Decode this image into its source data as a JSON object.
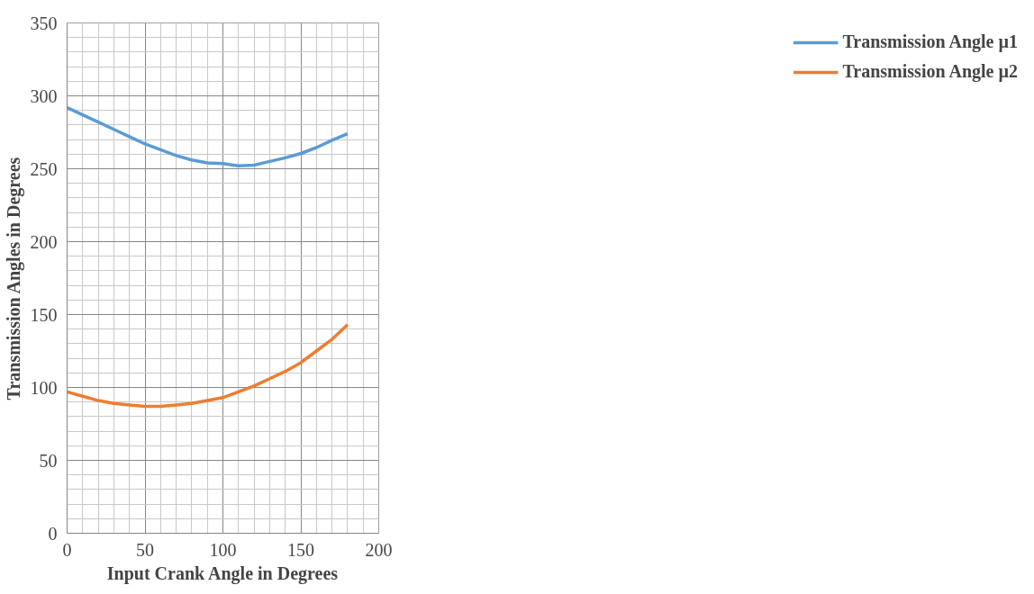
{
  "chart_data": {
    "type": "line",
    "xlabel": "Input Crank Angle in Degrees",
    "ylabel": "Transmission Angles in Degrees",
    "x": [
      0,
      10,
      20,
      30,
      40,
      50,
      60,
      70,
      80,
      90,
      100,
      110,
      120,
      130,
      140,
      150,
      160,
      170,
      180
    ],
    "series": [
      {
        "name": "Transmission Angle µ1",
        "color": "#5b9bd5",
        "values": [
          292,
          287,
          282,
          277,
          272,
          267,
          263,
          259,
          256,
          254,
          253.5,
          252,
          252.5,
          255,
          257.5,
          260.5,
          264.5,
          269.5,
          274
        ]
      },
      {
        "name": "Transmission Angle µ2",
        "color": "#ed7d31",
        "values": [
          97,
          94,
          91,
          89,
          88,
          87,
          87,
          88,
          89,
          91,
          93,
          97,
          101,
          106,
          111,
          117,
          125,
          133,
          143
        ]
      }
    ],
    "xlim": [
      0,
      200
    ],
    "xticks": [
      0,
      50,
      100,
      150,
      200
    ],
    "ylim": [
      0,
      350
    ],
    "yticks": [
      0,
      50,
      100,
      150,
      200,
      250,
      300,
      350
    ],
    "grid": true,
    "legend": "right",
    "marker": "none",
    "line_style": "solid"
  }
}
